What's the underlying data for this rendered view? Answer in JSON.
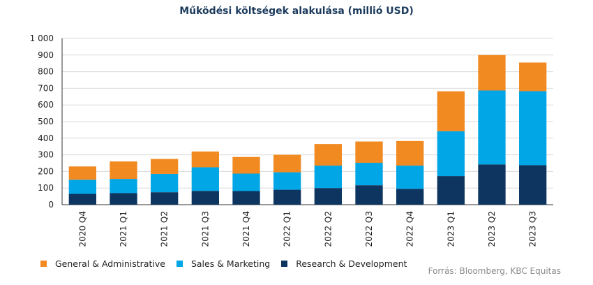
{
  "chart_data": {
    "type": "bar",
    "stacked": true,
    "title": "Működési költségek alakulása (millió USD)",
    "categories": [
      "2020 Q4",
      "2021 Q1",
      "2021 Q2",
      "2021 Q3",
      "2021 Q4",
      "2022 Q1",
      "2022 Q2",
      "2022 Q3",
      "2022 Q4",
      "2023 Q1",
      "2023 Q2",
      "2023 Q3"
    ],
    "series": [
      {
        "name": "Research & Development",
        "color": "#0d3560",
        "values": [
          65,
          70,
          75,
          83,
          82,
          90,
          100,
          117,
          95,
          172,
          242,
          238
        ]
      },
      {
        "name": "Sales & Marketing",
        "color": "#00a6e6",
        "values": [
          85,
          85,
          110,
          142,
          105,
          105,
          135,
          135,
          140,
          270,
          445,
          445
        ]
      },
      {
        "name": "General & Administrative",
        "color": "#f28a22",
        "values": [
          80,
          105,
          90,
          95,
          100,
          105,
          130,
          128,
          148,
          240,
          213,
          172
        ]
      }
    ],
    "legend_order": [
      "General & Administrative",
      "Sales & Marketing",
      "Research & Development"
    ],
    "ylim": [
      0,
      1000
    ],
    "yticks": [
      0,
      100,
      200,
      300,
      400,
      500,
      600,
      700,
      800,
      900,
      1000
    ],
    "ytick_labels": [
      "0",
      "100",
      "200",
      "300",
      "400",
      "500",
      "600",
      "700",
      "800",
      "900",
      "1 000"
    ],
    "grid": true,
    "legend_position": "bottom-left"
  },
  "source": "Forrás: Bloomberg, KBC Equitas"
}
